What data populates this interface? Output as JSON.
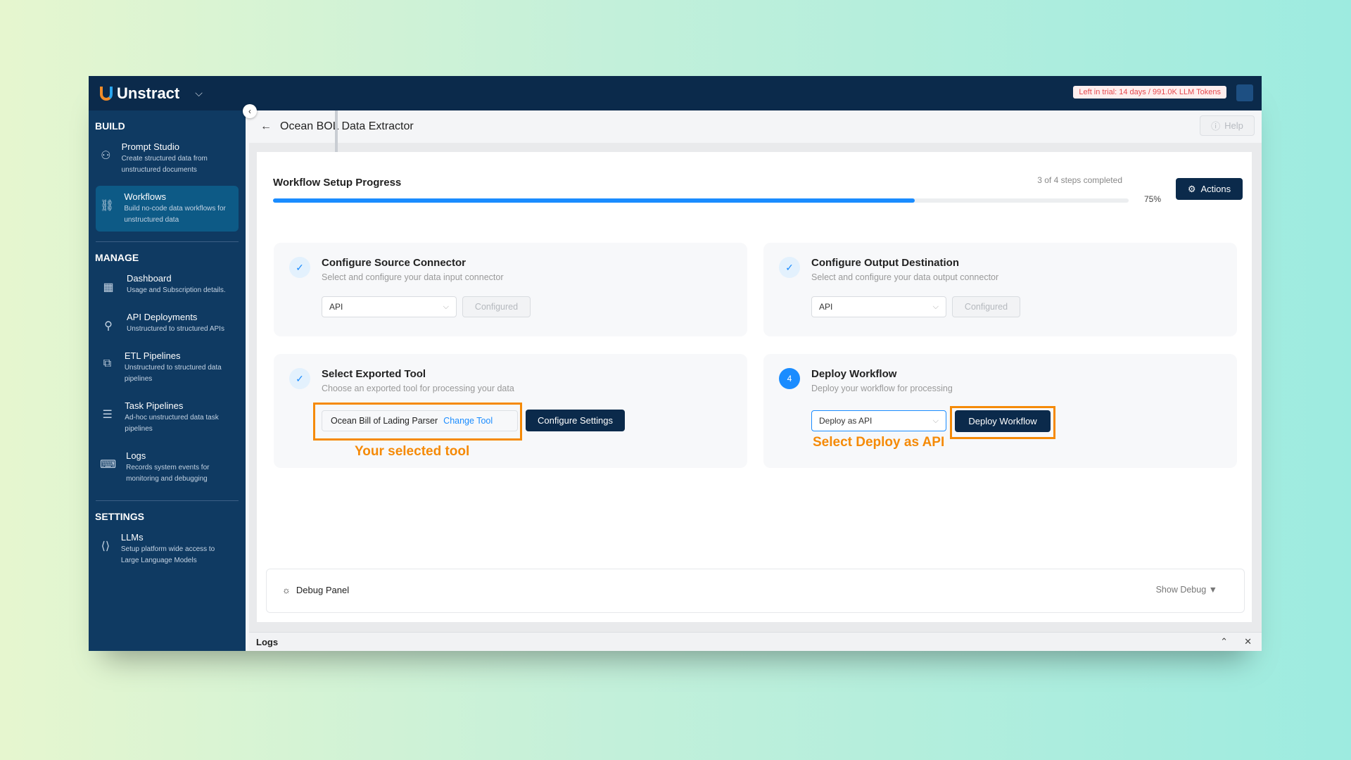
{
  "app": {
    "name": "Unstract",
    "trial": "Left in trial: 14 days / 991.0K LLM Tokens"
  },
  "sidebar": {
    "sections": [
      "BUILD",
      "MANAGE",
      "SETTINGS"
    ],
    "items": [
      {
        "label": "Prompt Studio",
        "desc": "Create structured data from unstructured documents",
        "icon": "prompt-studio-icon"
      },
      {
        "label": "Workflows",
        "desc": "Build no-code data workflows for unstructured data",
        "icon": "workflow-icon",
        "active": true
      },
      {
        "label": "Dashboard",
        "desc": "Usage and Subscription details.",
        "icon": "dashboard-icon"
      },
      {
        "label": "API Deployments",
        "desc": "Unstructured to structured APIs",
        "icon": "api-icon"
      },
      {
        "label": "ETL Pipelines",
        "desc": "Unstructured to structured data pipelines",
        "icon": "etl-icon"
      },
      {
        "label": "Task Pipelines",
        "desc": "Ad-hoc unstructured data task pipelines",
        "icon": "task-icon"
      },
      {
        "label": "Logs",
        "desc": "Records system events for monitoring and debugging",
        "icon": "terminal-icon"
      },
      {
        "label": "LLMs",
        "desc": "Setup platform wide access to Large Language Models",
        "icon": "llm-icon"
      }
    ]
  },
  "header": {
    "title": "Ocean BOL Data Extractor",
    "help": "Help"
  },
  "progress": {
    "title": "Workflow Setup Progress",
    "steps": "3 of 4 steps completed",
    "percent_label": "75%",
    "percent": 75,
    "actions": "Actions"
  },
  "cards": [
    {
      "title": "Configure Source Connector",
      "desc": "Select and configure your data input connector",
      "select": "API",
      "status": "Configured"
    },
    {
      "title": "Configure Output Destination",
      "desc": "Select and configure your data output connector",
      "select": "API",
      "status": "Configured"
    },
    {
      "title": "Select Exported Tool",
      "desc": "Choose an exported tool for processing your data",
      "tool": "Ocean Bill of Lading Parser",
      "change": "Change Tool",
      "button": "Configure Settings",
      "annotation": "Your selected tool"
    },
    {
      "step": "4",
      "title": "Deploy Workflow",
      "desc": "Deploy your workflow for processing",
      "select": "Deploy as API",
      "button": "Deploy Workflow",
      "annotation": "Select Deploy as API"
    }
  ],
  "debug": {
    "label": "Debug Panel",
    "toggle": "Show Debug ▼"
  },
  "logs": {
    "label": "Logs"
  },
  "colors": {
    "header": "#0b2a4b",
    "sidebar": "#0f3a62",
    "accent": "#1a8cff",
    "annotation": "#f58a07"
  }
}
